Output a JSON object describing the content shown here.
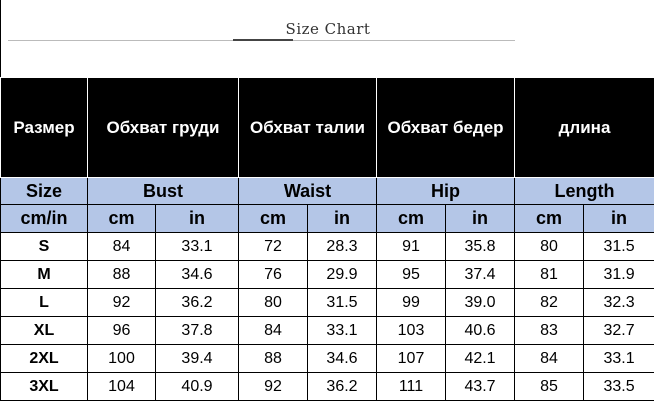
{
  "title": "Size Chart",
  "header_ru": [
    "Размер",
    "Обхват груди",
    "Обхват талии",
    "Обхват бедер",
    "длина"
  ],
  "header_en": [
    "Size",
    "Bust",
    "Waist",
    "Hip",
    "Length"
  ],
  "units": [
    "cm/in",
    "cm",
    "in",
    "cm",
    "in",
    "cm",
    "in",
    "cm",
    "in"
  ],
  "rows": [
    [
      "S",
      "84",
      "33.1",
      "72",
      "28.3",
      "91",
      "35.8",
      "80",
      "31.5"
    ],
    [
      "M",
      "88",
      "34.6",
      "76",
      "29.9",
      "95",
      "37.4",
      "81",
      "31.9"
    ],
    [
      "L",
      "92",
      "36.2",
      "80",
      "31.5",
      "99",
      "39.0",
      "82",
      "32.3"
    ],
    [
      "XL",
      "96",
      "37.8",
      "84",
      "33.1",
      "103",
      "40.6",
      "83",
      "32.7"
    ],
    [
      "2XL",
      "100",
      "39.4",
      "88",
      "34.6",
      "107",
      "42.1",
      "84",
      "33.1"
    ],
    [
      "3XL",
      "104",
      "40.9",
      "92",
      "36.2",
      "111",
      "43.7",
      "85",
      "33.5"
    ]
  ],
  "colors": {
    "header_bg": "#000000",
    "subheader_bg": "#b4c6e7"
  }
}
